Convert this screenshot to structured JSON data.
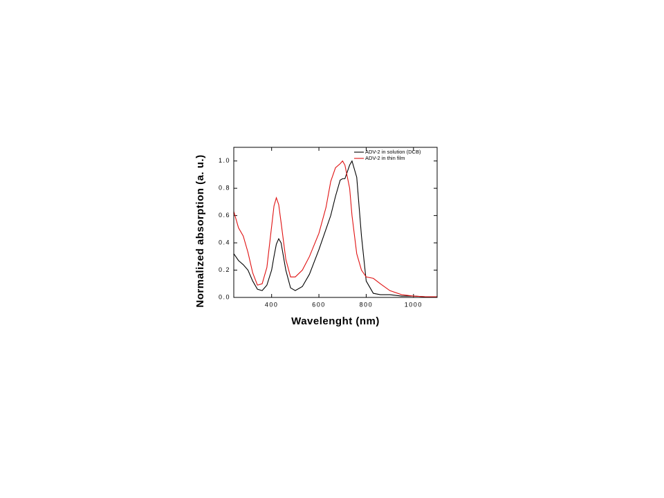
{
  "chart_data": {
    "type": "line",
    "x_label": "Wavelenght (nm)",
    "y_label": "Normalized absorption (a. u.)",
    "x": [
      240,
      260,
      280,
      300,
      320,
      340,
      360,
      380,
      400,
      410,
      420,
      430,
      440,
      460,
      480,
      500,
      530,
      560,
      600,
      630,
      650,
      670,
      690,
      700,
      710,
      730,
      740,
      760,
      780,
      800,
      830,
      860,
      900,
      950,
      1000,
      1050,
      1100
    ],
    "series": [
      {
        "name": "ADV-2 in solution (DCB)",
        "color": "#000000",
        "values": [
          0.32,
          0.27,
          0.24,
          0.2,
          0.12,
          0.06,
          0.05,
          0.09,
          0.2,
          0.3,
          0.39,
          0.43,
          0.4,
          0.2,
          0.07,
          0.05,
          0.08,
          0.17,
          0.35,
          0.5,
          0.6,
          0.74,
          0.86,
          0.87,
          0.87,
          0.97,
          1.0,
          0.88,
          0.45,
          0.12,
          0.03,
          0.02,
          0.02,
          0.01,
          0.01,
          0.005,
          0
        ]
      },
      {
        "name": "ADV-2 in thin film",
        "color": "#e01010",
        "values": [
          0.63,
          0.51,
          0.45,
          0.33,
          0.18,
          0.09,
          0.1,
          0.22,
          0.52,
          0.67,
          0.73,
          0.68,
          0.55,
          0.28,
          0.15,
          0.15,
          0.2,
          0.3,
          0.47,
          0.66,
          0.85,
          0.95,
          0.98,
          1.0,
          0.97,
          0.8,
          0.6,
          0.32,
          0.2,
          0.15,
          0.14,
          0.1,
          0.05,
          0.02,
          0.01,
          0.005,
          0.005
        ]
      }
    ],
    "xlim": [
      240,
      1100
    ],
    "xticks": [
      400,
      600,
      800,
      1000
    ],
    "ylim": [
      0,
      1.1
    ],
    "yticks": [
      {
        "value": 0,
        "label": "0.0"
      },
      0.2,
      0.4,
      0.6,
      0.8,
      {
        "value": 1,
        "label": "1.0"
      }
    ],
    "grid": false,
    "legend": "upper right"
  }
}
